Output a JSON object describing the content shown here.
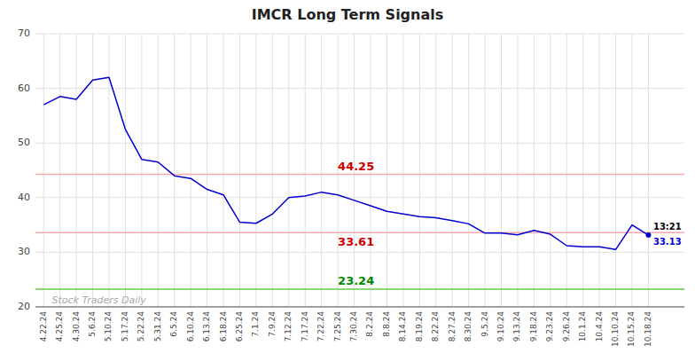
{
  "chart_data": {
    "type": "line",
    "title": "IMCR Long Term Signals",
    "categories": [
      "4.22.24",
      "4.25.24",
      "4.30.24",
      "5.6.24",
      "5.10.24",
      "5.17.24",
      "5.22.24",
      "5.31.24",
      "6.5.24",
      "6.10.24",
      "6.13.24",
      "6.18.24",
      "6.25.24",
      "7.1.24",
      "7.9.24",
      "7.12.24",
      "7.17.24",
      "7.22.24",
      "7.25.24",
      "7.30.24",
      "8.2.24",
      "8.8.24",
      "8.14.24",
      "8.19.24",
      "8.22.24",
      "8.27.24",
      "8.30.24",
      "9.5.24",
      "9.10.24",
      "9.13.24",
      "9.18.24",
      "9.23.24",
      "9.26.24",
      "10.1.24",
      "10.4.24",
      "10.10.24",
      "10.15.24",
      "10.18.24"
    ],
    "values": [
      57.0,
      58.5,
      58.0,
      61.5,
      62.0,
      52.5,
      47.0,
      46.5,
      44.0,
      43.5,
      41.5,
      40.5,
      35.5,
      35.3,
      37.0,
      40.0,
      40.3,
      41.0,
      40.5,
      39.5,
      38.5,
      37.5,
      37.0,
      36.5,
      36.3,
      35.8,
      35.2,
      33.5,
      33.5,
      33.2,
      34.0,
      33.3,
      31.2,
      31.0,
      31.0,
      30.5,
      35.0,
      33.13
    ],
    "color": "#0000cc",
    "ylim": [
      20,
      70
    ],
    "yticks": [
      20,
      30,
      40,
      50,
      60,
      70
    ],
    "grid": true,
    "bands": [
      {
        "value": 44.25,
        "color": "#ffaaaa",
        "label_color": "#cc0000"
      },
      {
        "value": 33.61,
        "color": "#ffaaaa",
        "label_color": "#cc0000"
      },
      {
        "value": 23.24,
        "color": "#66cc44",
        "label_color": "#008800"
      }
    ],
    "annotations": [
      {
        "text": "13:21",
        "color": "#000000"
      },
      {
        "text": "33.13",
        "color": "#0000cc"
      },
      {
        "text": "Stock Traders Daily",
        "color": "#aaaaaa"
      }
    ]
  }
}
